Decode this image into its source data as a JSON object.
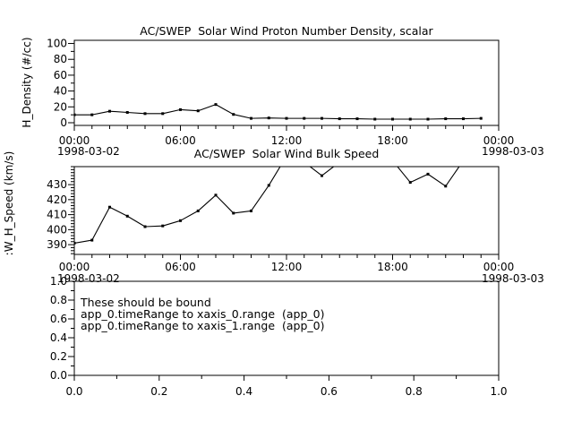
{
  "colors": {
    "background": "#ffffff",
    "foreground": "#000000",
    "line": "#000000"
  },
  "chart_data": [
    {
      "type": "line",
      "title": "AC/SWEP  Solar Wind Proton Number Density, scalar",
      "ylabel": "H_Density (#/cc)",
      "x_axis": {
        "range_hours": [
          0,
          24
        ],
        "major_tick_hours": [
          0,
          6,
          12,
          18,
          24
        ],
        "major_tick_labels": [
          "00:00",
          "06:00",
          "12:00",
          "18:00",
          "00:00"
        ],
        "minor_tick_step_hours": 1,
        "start_date": "1998-03-02",
        "end_date": "1998-03-03"
      },
      "y_axis": {
        "range": [
          -3.4,
          104
        ],
        "tick_values": [
          0,
          20,
          40,
          60,
          80,
          100
        ],
        "tick_labels": [
          "0",
          "20",
          "40",
          "60",
          "80",
          "100"
        ],
        "minor_step": 10
      },
      "grid": false,
      "marker": "filled-square",
      "series": [
        {
          "name": "H_Density",
          "x_hours": [
            0,
            1,
            2,
            3,
            4,
            5,
            6,
            7,
            8,
            9,
            10,
            11,
            12,
            13,
            14,
            15,
            16,
            17,
            18,
            19,
            20,
            21,
            22,
            23
          ],
          "values": [
            10,
            10,
            14.5,
            13,
            11.5,
            11.5,
            16.5,
            15,
            23,
            10.5,
            5.5,
            6,
            5.5,
            5.5,
            5.5,
            5,
            5,
            4.5,
            4.5,
            4.5,
            4.5,
            5,
            5,
            5.5
          ]
        }
      ]
    },
    {
      "type": "line",
      "title": "AC/SWEP  Solar Wind Bulk Speed",
      "ylabel": ":W_H_Speed (km/s)",
      "x_axis": {
        "range_hours": [
          0,
          24
        ],
        "major_tick_hours": [
          0,
          6,
          12,
          18,
          24
        ],
        "major_tick_labels": [
          "00:00",
          "06:00",
          "12:00",
          "18:00",
          "00:00"
        ],
        "minor_tick_step_hours": 1,
        "start_date": "1998-03-02",
        "end_date": "1998-03-03"
      },
      "y_axis": {
        "range": [
          383.5,
          442
        ],
        "tick_values": [
          390,
          400,
          410,
          420,
          430
        ],
        "tick_labels": [
          "390",
          "400",
          "410",
          "420",
          "430"
        ],
        "minor_step": 2
      },
      "grid": false,
      "marker": "filled-square",
      "series": [
        {
          "name": "SW_H_Speed",
          "x_hours": [
            0,
            1,
            2,
            3,
            4,
            5,
            6,
            7,
            8,
            9,
            10,
            11,
            12,
            13,
            14,
            15,
            16,
            17,
            18,
            19,
            20,
            21,
            22,
            23
          ],
          "values": [
            391,
            393,
            415,
            409,
            402,
            402.5,
            406,
            412.5,
            423,
            411,
            412.5,
            429.5,
            449,
            445,
            436,
            445,
            452,
            452,
            446,
            431.5,
            437,
            429,
            446,
            452
          ]
        }
      ]
    },
    {
      "type": "annotation",
      "title": "",
      "ylabel": "",
      "annotation_lines": [
        "These should be bound",
        "app_0.timeRange to xaxis_0.range  (app_0)",
        "app_0.timeRange to xaxis_1.range  (app_0)"
      ],
      "x_axis": {
        "range": [
          0,
          1
        ],
        "major_tick_values": [
          0,
          0.2,
          0.4,
          0.6,
          0.8,
          1.0
        ],
        "major_tick_labels": [
          "0.0",
          "0.2",
          "0.4",
          "0.6",
          "0.8",
          "1.0"
        ],
        "minor_step": 0.1
      },
      "y_axis": {
        "range": [
          0,
          1
        ],
        "tick_values": [
          0,
          0.2,
          0.4,
          0.6,
          0.8,
          1.0
        ],
        "tick_labels": [
          "0.0",
          "0.2",
          "0.4",
          "0.6",
          "0.8",
          "1.0"
        ],
        "minor_step": 0.1
      },
      "grid": false,
      "series": []
    }
  ]
}
